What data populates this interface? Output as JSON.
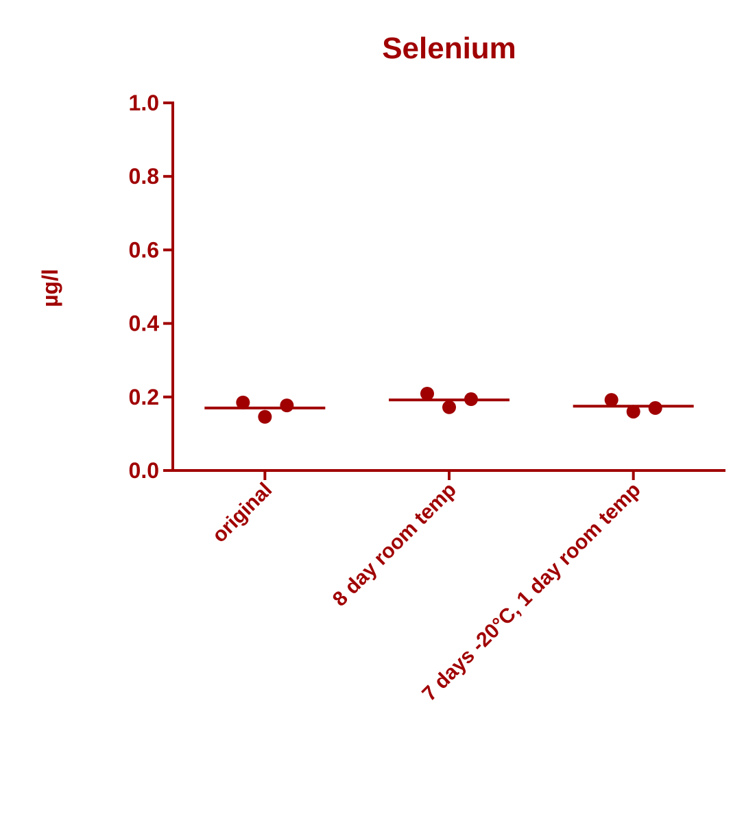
{
  "chart_data": {
    "type": "strip",
    "title": "Selenium",
    "y_label": "µg/l",
    "categories": [
      "original",
      "8 day room temp",
      "7 days -20°C, 1 day room temp"
    ],
    "values": [
      [
        0.185,
        0.146,
        0.177
      ],
      [
        0.209,
        0.172,
        0.194
      ],
      [
        0.192,
        0.16,
        0.17
      ]
    ],
    "means": [
      0.17,
      0.192,
      0.175
    ],
    "color": "#a00000",
    "ylim": [
      0,
      1.0
    ],
    "yticks": [
      {
        "value": 0,
        "label": "0.0"
      },
      {
        "value": 0.2,
        "label": "0.2"
      },
      {
        "value": 0.4,
        "label": "0.4"
      },
      {
        "value": 0.6,
        "label": "0.6"
      },
      {
        "value": 0.8,
        "label": "0.8"
      },
      {
        "value": 1.0,
        "label": "1.0"
      }
    ]
  }
}
